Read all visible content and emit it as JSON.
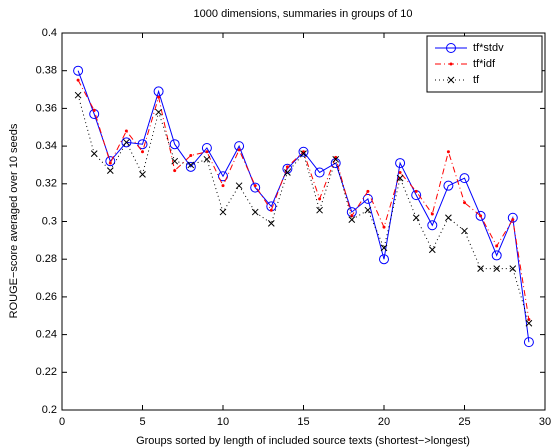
{
  "chart_data": {
    "type": "line",
    "title": "1000 dimensions, summaries in groups of 10",
    "x_label": "Groups sorted by length of included source texts (shortest−>longest)",
    "y_label": "ROUGE−score averaged over 10 seeds",
    "x": [
      1,
      2,
      3,
      4,
      5,
      6,
      7,
      8,
      9,
      10,
      11,
      12,
      13,
      14,
      15,
      16,
      17,
      18,
      19,
      20,
      21,
      22,
      23,
      24,
      25,
      26,
      27,
      28,
      29
    ],
    "series": [
      {
        "name": "tf*stdv",
        "color": "#0000ff",
        "marker": "o",
        "linestyle": "solid",
        "values": [
          0.38,
          0.357,
          0.332,
          0.342,
          0.341,
          0.369,
          0.341,
          0.329,
          0.339,
          0.324,
          0.34,
          0.318,
          0.308,
          0.328,
          0.337,
          0.326,
          0.331,
          0.305,
          0.312,
          0.28,
          0.331,
          0.314,
          0.298,
          0.319,
          0.323,
          0.303,
          0.282,
          0.302,
          0.236
        ]
      },
      {
        "name": "tf*idf",
        "color": "#ff0000",
        "marker": ".",
        "linestyle": "dashdot",
        "values": [
          0.375,
          0.359,
          0.331,
          0.348,
          0.337,
          0.366,
          0.327,
          0.335,
          0.337,
          0.319,
          0.338,
          0.319,
          0.306,
          0.329,
          0.337,
          0.312,
          0.334,
          0.303,
          0.316,
          0.297,
          0.326,
          0.316,
          0.304,
          0.337,
          0.31,
          0.303,
          0.287,
          0.301,
          0.248
        ]
      },
      {
        "name": "tf",
        "color": "#000000",
        "marker": "x",
        "linestyle": "dotted",
        "values": [
          0.367,
          0.336,
          0.327,
          0.342,
          0.325,
          0.358,
          0.332,
          0.33,
          0.333,
          0.305,
          0.319,
          0.305,
          0.299,
          0.326,
          0.336,
          0.306,
          0.333,
          0.301,
          0.306,
          0.286,
          0.323,
          0.302,
          0.285,
          0.302,
          0.295,
          0.275,
          0.275,
          0.275,
          0.246
        ]
      }
    ],
    "xlim": [
      0,
      30
    ],
    "xticks": [
      0,
      5,
      10,
      15,
      20,
      25,
      30
    ],
    "ylim": [
      0.2,
      0.4
    ],
    "yticks": [
      0.2,
      0.22,
      0.24,
      0.26,
      0.28,
      0.3,
      0.32,
      0.34,
      0.36,
      0.38,
      0.4
    ],
    "legend": "top-right"
  }
}
